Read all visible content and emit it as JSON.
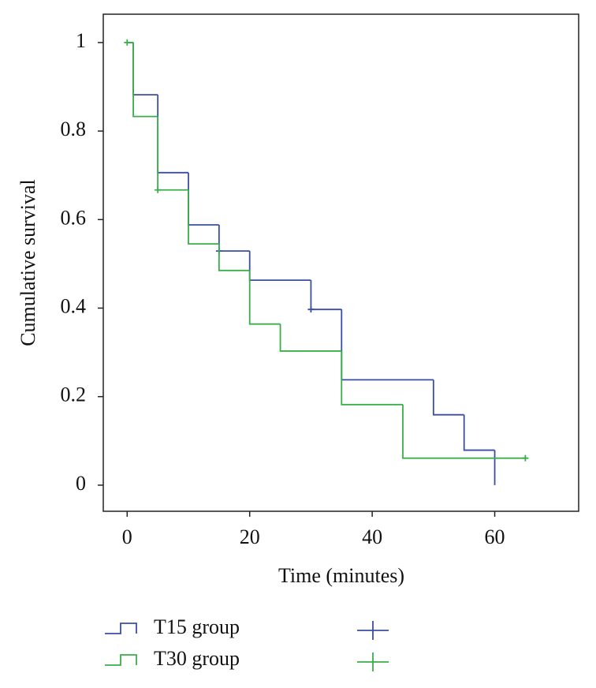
{
  "chart_data": {
    "type": "step",
    "x_label": "Time (minutes)",
    "y_label": "Cumulative survival",
    "xlim": [
      -3.9,
      73.7
    ],
    "ylim": [
      -0.059,
      1.064
    ],
    "xticks": [
      0,
      20,
      40,
      60
    ],
    "yticks": [
      0,
      0.2,
      0.4,
      0.6,
      0.8,
      1
    ],
    "series": [
      {
        "name": "T15 group",
        "color": "#3a4ea3",
        "x": [
          0,
          1,
          5,
          10,
          15,
          20,
          30,
          35,
          50,
          55,
          60
        ],
        "values": [
          1,
          0.882,
          0.706,
          0.588,
          0.529,
          0.463,
          0.397,
          0.238,
          0.159,
          0.079,
          0
        ],
        "censored_x": [
          15,
          30
        ],
        "censored_values": [
          0.529,
          0.397
        ]
      },
      {
        "name": "T30 group",
        "color": "#3aae4a",
        "x": [
          0,
          1,
          5,
          10,
          15,
          20,
          25,
          35,
          45
        ],
        "values": [
          1,
          0.833,
          0.667,
          0.545,
          0.485,
          0.364,
          0.303,
          0.182,
          0.061
        ],
        "censored_x": [
          0,
          5,
          65
        ],
        "censored_values": [
          1,
          0.667,
          0.061
        ]
      }
    ]
  }
}
